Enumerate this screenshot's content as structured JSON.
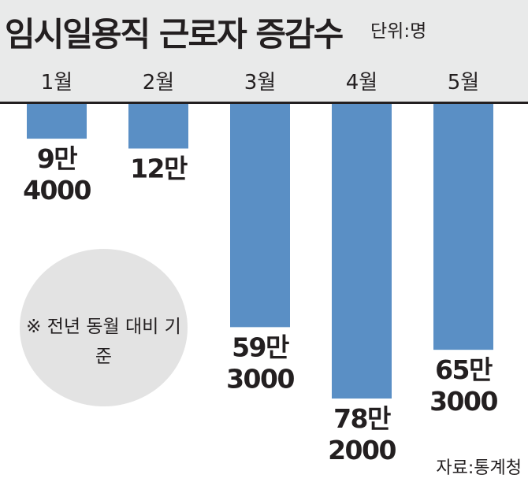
{
  "title": "임시일용직 근로자 증감수",
  "unit": "단위:명",
  "note": "※ 전년 동월 대비 기준",
  "source": "자료:통계청",
  "chart_data": {
    "type": "bar",
    "title": "임시일용직 근로자 증감수",
    "categories": [
      "1월",
      "2월",
      "3월",
      "4월",
      "5월"
    ],
    "values": [
      -94000,
      -120000,
      -593000,
      -782000,
      -653000
    ],
    "value_labels": [
      [
        "9만",
        "4000"
      ],
      [
        "12만"
      ],
      [
        "59만",
        "3000"
      ],
      [
        "78만",
        "2000"
      ],
      [
        "65만",
        "3000"
      ]
    ],
    "ylabel": "",
    "unit": "명",
    "bar_color": "#5a8fc5"
  }
}
